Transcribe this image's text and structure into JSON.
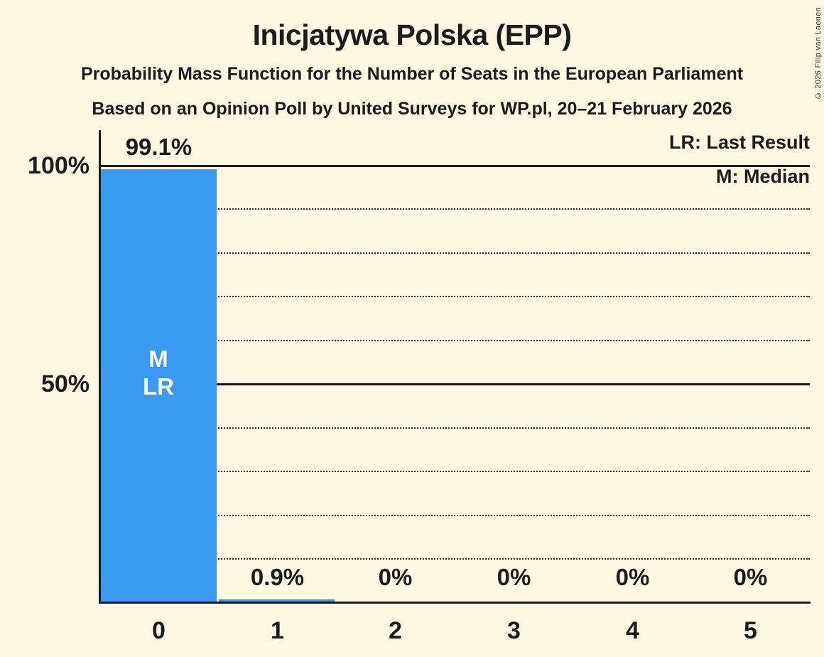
{
  "title": "Inicjatywa Polska (EPP)",
  "subtitle1": "Probability Mass Function for the Number of Seats in the European Parliament",
  "subtitle2": "Based on an Opinion Poll by United Surveys for WP.pl, 20–21 February 2026",
  "copyright": "© 2026 Filip van Laenen",
  "legend": {
    "last_result": "LR: Last Result",
    "median": "M: Median"
  },
  "y_axis": {
    "tick_100": "100%",
    "tick_50": "50%"
  },
  "chart_data": {
    "type": "bar",
    "title": "Inicjatywa Polska (EPP) — Probability Mass Function for the Number of Seats in the European Parliament",
    "xlabel": "Number of seats",
    "ylabel": "Probability",
    "categories": [
      "0",
      "1",
      "2",
      "3",
      "4",
      "5"
    ],
    "values": [
      99.1,
      0.9,
      0,
      0,
      0,
      0
    ],
    "value_labels": [
      "99.1%",
      "0.9%",
      "0%",
      "0%",
      "0%",
      "0%"
    ],
    "ylim": [
      0,
      100
    ],
    "y_ticks": [
      100,
      50
    ],
    "gridlines_dotted_pct": [
      90,
      80,
      70,
      60,
      40,
      30,
      20,
      10
    ],
    "gridlines_solid_pct": [
      100,
      50
    ],
    "legend_position": "top-right",
    "bar_color": "#3A99F0",
    "background_color": "#FCF7E1",
    "annotations": {
      "median_label": "M",
      "last_result_label": "LR",
      "annotated_bar": "0"
    }
  }
}
